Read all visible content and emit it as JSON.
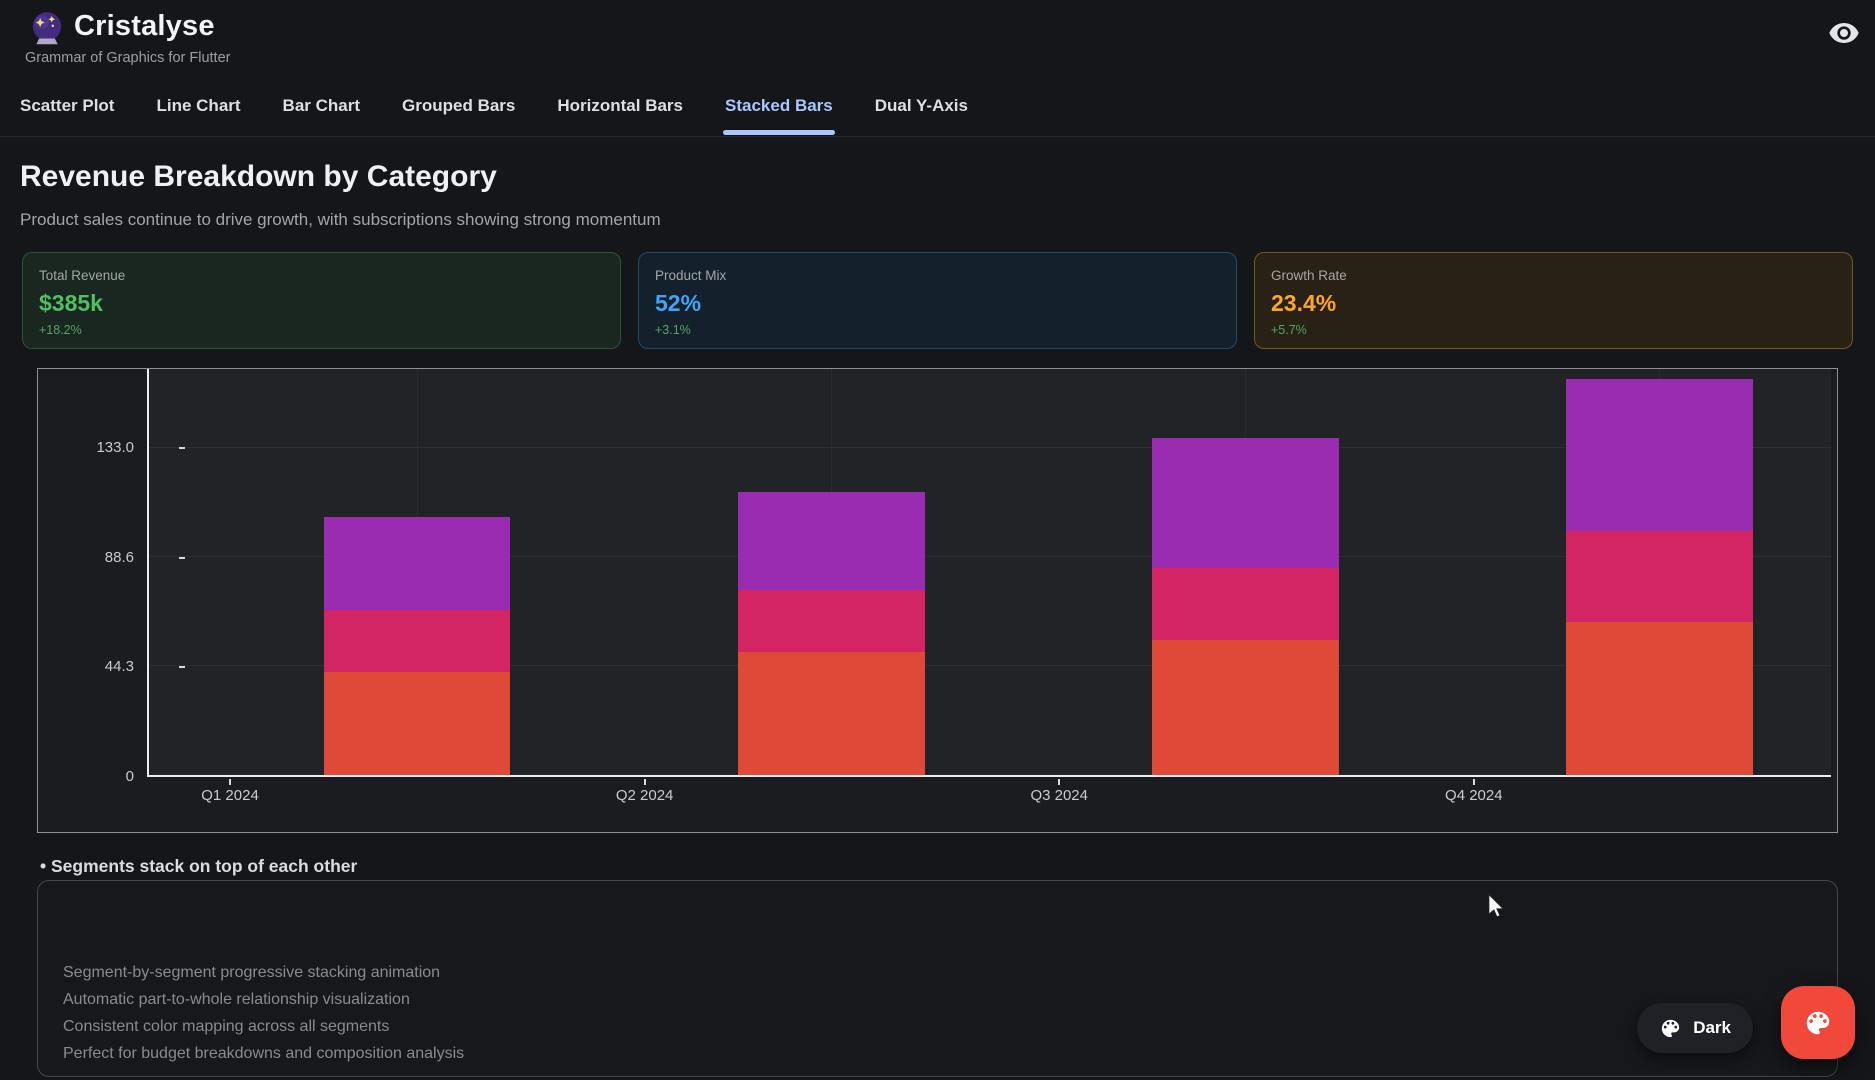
{
  "header": {
    "app_title": "Cristalyse",
    "app_subtitle": "Grammar of Graphics for Flutter",
    "logo_icon": "crystal-ball-icon",
    "eye_icon": "visibility-icon"
  },
  "tabs": {
    "active_color": "#A9C7FF",
    "items": [
      {
        "label": "Scatter Plot",
        "active": false
      },
      {
        "label": "Line Chart",
        "active": false
      },
      {
        "label": "Bar Chart",
        "active": false
      },
      {
        "label": "Grouped Bars",
        "active": false
      },
      {
        "label": "Horizontal Bars",
        "active": false
      },
      {
        "label": "Stacked Bars",
        "active": true
      },
      {
        "label": "Dual Y-Axis",
        "active": false
      }
    ]
  },
  "page": {
    "title": "Revenue Breakdown by Category",
    "subtitle": "Product sales continue to drive growth, with subscriptions showing strong momentum"
  },
  "stats": [
    {
      "label": "Total Revenue",
      "value": "$385k",
      "delta": "+18.2%",
      "value_color": "#4DC063",
      "border_color": "#2D5339",
      "bg_color": "#1A2620"
    },
    {
      "label": "Product Mix",
      "value": "52%",
      "delta": "+3.1%",
      "value_color": "#41A4F7",
      "border_color": "#1F4A72",
      "bg_color": "#14202C"
    },
    {
      "label": "Growth Rate",
      "value": "23.4%",
      "delta": "+5.7%",
      "value_color": "#FFA629",
      "border_color": "#78561E",
      "bg_color": "#2A2116"
    }
  ],
  "chart_data": {
    "type": "bar",
    "stacked": true,
    "title": "",
    "xlabel": "",
    "ylabel": "",
    "categories": [
      "Q1 2024",
      "Q2 2024",
      "Q3 2024",
      "Q4 2024"
    ],
    "series": [
      {
        "name": "bottom-segment-orange",
        "color": "#DF4938",
        "values": [
          42,
          50,
          55,
          62
        ]
      },
      {
        "name": "middle-segment-pink",
        "color": "#D32563",
        "values": [
          25,
          25,
          29,
          37
        ]
      },
      {
        "name": "top-segment-purple",
        "color": "#9A2CB2",
        "values": [
          38,
          40,
          53,
          62
        ]
      }
    ],
    "totals": [
      105,
      115,
      137,
      161
    ],
    "yticks": [
      "0",
      "44.3",
      "88.6",
      "133.0"
    ],
    "ytick_values": [
      0,
      44.3,
      88.6,
      133.0
    ],
    "ylim": [
      0,
      165
    ],
    "grid": "subtle horizontal and vertical gridlines",
    "legend": "none"
  },
  "note_line": "• Segments stack on top of each other",
  "features": {
    "items": [
      "Segment-by-segment progressive stacking animation",
      "Automatic part-to-whole relationship visualization",
      "Consistent color mapping across all segments",
      "Perfect for budget breakdowns and composition analysis"
    ]
  },
  "theme_toggle": {
    "label": "Dark",
    "icon": "palette-icon"
  },
  "fab": {
    "icon": "palette-icon",
    "color": "#F0493B"
  }
}
